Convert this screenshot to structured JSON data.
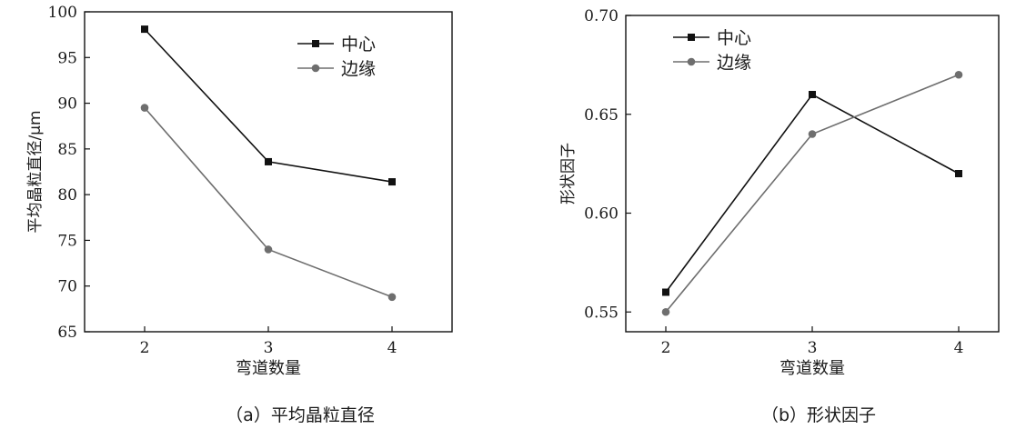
{
  "chart_data": [
    {
      "type": "line",
      "caption": "（a）平均晶粒直径",
      "xlabel": "弯道数量",
      "ylabel": "平均晶粒直径/μm",
      "x": [
        2,
        3,
        4
      ],
      "xticks": [
        "2",
        "3",
        "4"
      ],
      "ylim": [
        65,
        100
      ],
      "yticks": [
        "65",
        "70",
        "75",
        "80",
        "85",
        "90",
        "95",
        "100"
      ],
      "grid": false,
      "legend_position": "top-center",
      "series": [
        {
          "name": "中心",
          "values": [
            98.1,
            83.6,
            81.4
          ],
          "marker": "square",
          "color": "#111111"
        },
        {
          "name": "边缘",
          "values": [
            89.5,
            74.0,
            68.8
          ],
          "marker": "circle",
          "color": "#6e6e6e"
        }
      ]
    },
    {
      "type": "line",
      "caption": "（b）形状因子",
      "xlabel": "弯道数量",
      "ylabel": "形状因子",
      "x": [
        2,
        3,
        4
      ],
      "xticks": [
        "2",
        "3",
        "4"
      ],
      "ylim": [
        0.54,
        0.7
      ],
      "yticks": [
        "0.55",
        "0.60",
        "0.65",
        "0.70"
      ],
      "grid": false,
      "legend_position": "top-left",
      "series": [
        {
          "name": "中心",
          "values": [
            0.56,
            0.66,
            0.62
          ],
          "marker": "square",
          "color": "#111111"
        },
        {
          "name": "边缘",
          "values": [
            0.55,
            0.64,
            0.67
          ],
          "marker": "circle",
          "color": "#6e6e6e"
        }
      ]
    }
  ]
}
